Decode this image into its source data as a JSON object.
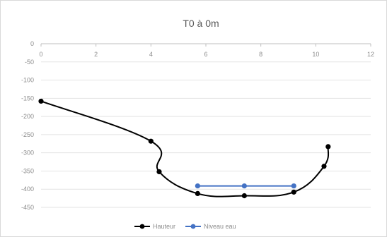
{
  "chart_data": {
    "type": "scatter",
    "title": "T0 à 0m",
    "xlim": [
      0,
      12
    ],
    "ylim": [
      -450,
      0
    ],
    "x_ticks": [
      0,
      2,
      4,
      6,
      8,
      10,
      12
    ],
    "y_ticks": [
      0,
      -50,
      -100,
      -150,
      -200,
      -250,
      -300,
      -350,
      -400,
      -450
    ],
    "x_axis_position": "top",
    "grid": "horizontal",
    "legend_position": "bottom",
    "series": [
      {
        "name": "Hauteur",
        "color": "#000000",
        "smooth": true,
        "x": [
          0,
          4.0,
          4.3,
          5.7,
          7.4,
          9.2,
          10.3,
          10.45
        ],
        "y": [
          -158,
          -268,
          -352,
          -412,
          -418,
          -408,
          -337,
          -283
        ]
      },
      {
        "name": "Niveau eau",
        "color": "#4472c4",
        "smooth": false,
        "x": [
          5.7,
          7.4,
          9.2
        ],
        "y": [
          -391,
          -391,
          -391
        ]
      }
    ]
  }
}
